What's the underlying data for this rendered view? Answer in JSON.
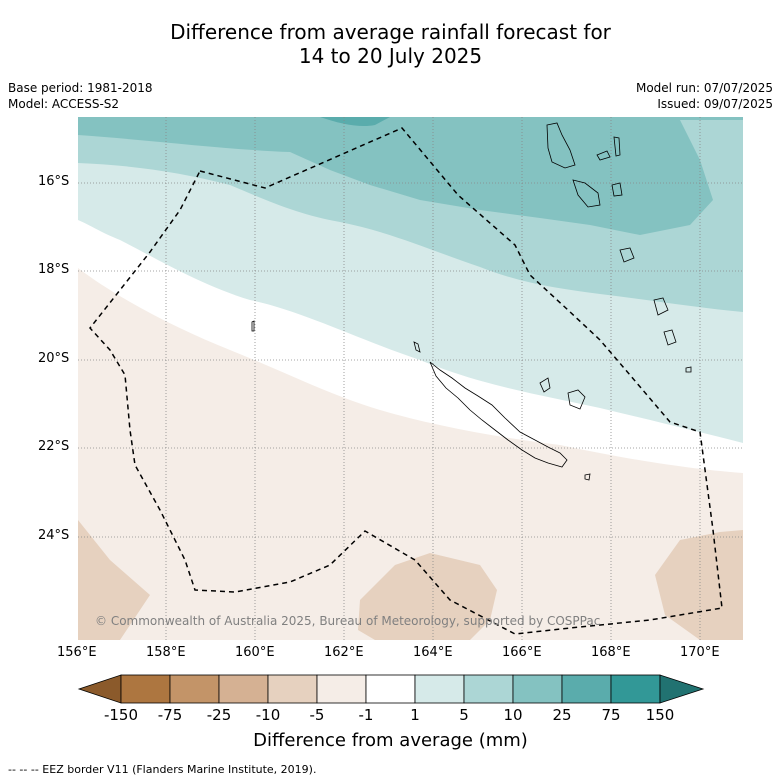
{
  "title_line1": "Difference from average rainfall forecast for",
  "title_line2": "14 to 20 July 2025",
  "base_period": "Base period: 1981-2018",
  "model": "Model: ACCESS-S2",
  "model_run": "Model run: 07/07/2025",
  "issued": "Issued: 09/07/2025",
  "copyright": "© Commonwealth of Australia 2025, Bureau of Meteorology, supported by COSPPac",
  "footnote": "--  --  -- EEZ border V11 (Flanders Marine Institute, 2019).",
  "lat_labels": [
    "16°S",
    "18°S",
    "20°S",
    "22°S",
    "24°S"
  ],
  "lon_labels": [
    "156°E",
    "158°E",
    "160°E",
    "162°E",
    "164°E",
    "166°E",
    "168°E",
    "170°E"
  ],
  "colorbar": {
    "title": "Difference from average (mm)",
    "labels": [
      "-150",
      "-75",
      "-25",
      "-10",
      "-5",
      "-1",
      "1",
      "5",
      "10",
      "25",
      "75",
      "150"
    ],
    "colors": [
      "#8b5a2b",
      "#ad7640",
      "#c39468",
      "#d5b193",
      "#e6d1bf",
      "#f5ede7",
      "#ffffff",
      "#d6eae9",
      "#acd6d5",
      "#84c2c1",
      "#5aacac",
      "#329897",
      "#217271"
    ]
  },
  "map": {
    "extent": {
      "lon": [
        156,
        171
      ],
      "lat": [
        -26.2,
        -14.4
      ]
    },
    "colors": {
      "land_outline": "#000000",
      "grid": "#888888",
      "eez": "#000000"
    }
  }
}
